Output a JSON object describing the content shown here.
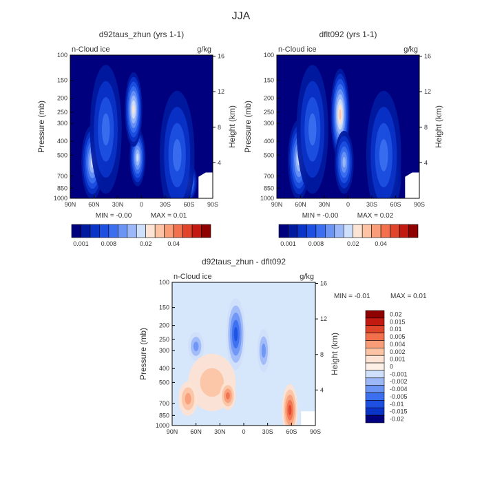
{
  "page": {
    "title": "JJA"
  },
  "chart_data": [
    {
      "type": "heatmap",
      "title": "d92taus_zhun (yrs 1-1)",
      "field_label": "n-Cloud ice",
      "units": "g/kg",
      "xlabel": "",
      "ylabel": "Pressure (mb)",
      "y2label": "Height (km)",
      "x_ticks": [
        "90N",
        "60N",
        "30N",
        "0",
        "30S",
        "60S",
        "90S"
      ],
      "y_ticks": [
        "100",
        "150",
        "200",
        "250",
        "300",
        "400",
        "500",
        "700",
        "850",
        "1000"
      ],
      "y2_ticks": [
        "16",
        "12",
        "8",
        "4"
      ],
      "min_text": "MIN =  -0.00",
      "max_text": "MAX =    0.01",
      "colorbar_labels": [
        "0.001",
        "0.008",
        "0.02",
        "0.04"
      ],
      "colorbar_colors": [
        "#00007f",
        "#001a9f",
        "#0a33c8",
        "#1d50e0",
        "#3b6ff0",
        "#6b94f5",
        "#9cb8f8",
        "#cfe0fb",
        "#fde3d3",
        "#fcc3a5",
        "#f99d78",
        "#f2704c",
        "#e0442a",
        "#c21a10",
        "#8f0000"
      ],
      "blobs": [
        {
          "lat": 62,
          "p": 560,
          "rx": 14,
          "ry": 0.26,
          "level": 0.75
        },
        {
          "lat": 5,
          "p": 520,
          "rx": 10,
          "ry": 0.2,
          "level": 0.8
        },
        {
          "lat": 10,
          "p": 240,
          "rx": 11,
          "ry": 0.26,
          "level": 0.85
        },
        {
          "lat": -58,
          "p": 770,
          "rx": 12,
          "ry": 0.14,
          "level": 0.9
        },
        {
          "lat": 45,
          "p": 330,
          "rx": 20,
          "ry": 0.45,
          "level": 0.45
        },
        {
          "lat": -45,
          "p": 500,
          "rx": 22,
          "ry": 0.45,
          "level": 0.4
        }
      ]
    },
    {
      "type": "heatmap",
      "title": "dflt092 (yrs 1-1)",
      "field_label": "n-Cloud ice",
      "units": "g/kg",
      "xlabel": "",
      "ylabel": "Pressure (mb)",
      "y2label": "Height (km)",
      "x_ticks": [
        "90N",
        "60N",
        "30N",
        "0",
        "30S",
        "60S",
        "90S"
      ],
      "y_ticks": [
        "100",
        "150",
        "200",
        "250",
        "300",
        "400",
        "500",
        "700",
        "850",
        "1000"
      ],
      "y2_ticks": [
        "16",
        "12",
        "8",
        "4"
      ],
      "min_text": "MIN =  -0.00",
      "max_text": "MAX =    0.02",
      "colorbar_labels": [
        "0.001",
        "0.008",
        "0.02",
        "0.04"
      ],
      "colorbar_colors": [
        "#00007f",
        "#001a9f",
        "#0a33c8",
        "#1d50e0",
        "#3b6ff0",
        "#6b94f5",
        "#9cb8f8",
        "#cfe0fb",
        "#fde3d3",
        "#fcc3a5",
        "#f99d78",
        "#f2704c",
        "#e0442a",
        "#c21a10",
        "#8f0000"
      ],
      "blobs": [
        {
          "lat": 62,
          "p": 540,
          "rx": 14,
          "ry": 0.28,
          "level": 0.75
        },
        {
          "lat": 10,
          "p": 260,
          "rx": 12,
          "ry": 0.32,
          "level": 1.0
        },
        {
          "lat": 5,
          "p": 560,
          "rx": 12,
          "ry": 0.22,
          "level": 0.7
        },
        {
          "lat": -55,
          "p": 720,
          "rx": 12,
          "ry": 0.2,
          "level": 0.75
        },
        {
          "lat": 45,
          "p": 330,
          "rx": 20,
          "ry": 0.45,
          "level": 0.45
        },
        {
          "lat": -45,
          "p": 500,
          "rx": 22,
          "ry": 0.45,
          "level": 0.4
        }
      ]
    },
    {
      "type": "heatmap",
      "title": "d92taus_zhun - dflt092",
      "field_label": "n-Cloud ice",
      "units": "g/kg",
      "xlabel": "",
      "ylabel": "Pressure (mb)",
      "y2label": "Height (km)",
      "x_ticks": [
        "90N",
        "60N",
        "30N",
        "0",
        "30S",
        "60S",
        "90S"
      ],
      "y_ticks": [
        "100",
        "150",
        "200",
        "250",
        "300",
        "400",
        "500",
        "700",
        "850",
        "1000"
      ],
      "y2_ticks": [
        "16",
        "12",
        "8",
        "4"
      ],
      "min_text": "MIN =  -0.01",
      "max_text": "MAX =    0.01",
      "colorbar_labels": [
        "0.02",
        "0.015",
        "0.01",
        "0.005",
        "0.004",
        "0.002",
        "0.001",
        "0",
        "-0.001",
        "-0.002",
        "-0.004",
        "-0.005",
        "-0.01",
        "-0.015",
        "-0.02"
      ],
      "colorbar_colors": [
        "#8f0000",
        "#c21a10",
        "#e0442a",
        "#f2704c",
        "#f99d78",
        "#fcc3a5",
        "#fde3d3",
        "#fdf0e6",
        "#cfe0fb",
        "#9cb8f8",
        "#6b94f5",
        "#3b6ff0",
        "#1d50e0",
        "#0a33c8",
        "#00007f"
      ],
      "blobs": [
        {
          "lat": 10,
          "p": 230,
          "rx": 12,
          "ry": 0.25,
          "level": -0.01
        },
        {
          "lat": 60,
          "p": 280,
          "rx": 10,
          "ry": 0.1,
          "level": -0.004
        },
        {
          "lat": -25,
          "p": 300,
          "rx": 8,
          "ry": 0.15,
          "level": -0.003
        },
        {
          "lat": 40,
          "p": 500,
          "rx": 30,
          "ry": 0.2,
          "level": 0.002
        },
        {
          "lat": 20,
          "p": 620,
          "rx": 10,
          "ry": 0.1,
          "level": 0.005
        },
        {
          "lat": -58,
          "p": 780,
          "rx": 10,
          "ry": 0.18,
          "level": 0.012
        },
        {
          "lat": 70,
          "p": 650,
          "rx": 12,
          "ry": 0.12,
          "level": 0.004
        }
      ]
    }
  ]
}
